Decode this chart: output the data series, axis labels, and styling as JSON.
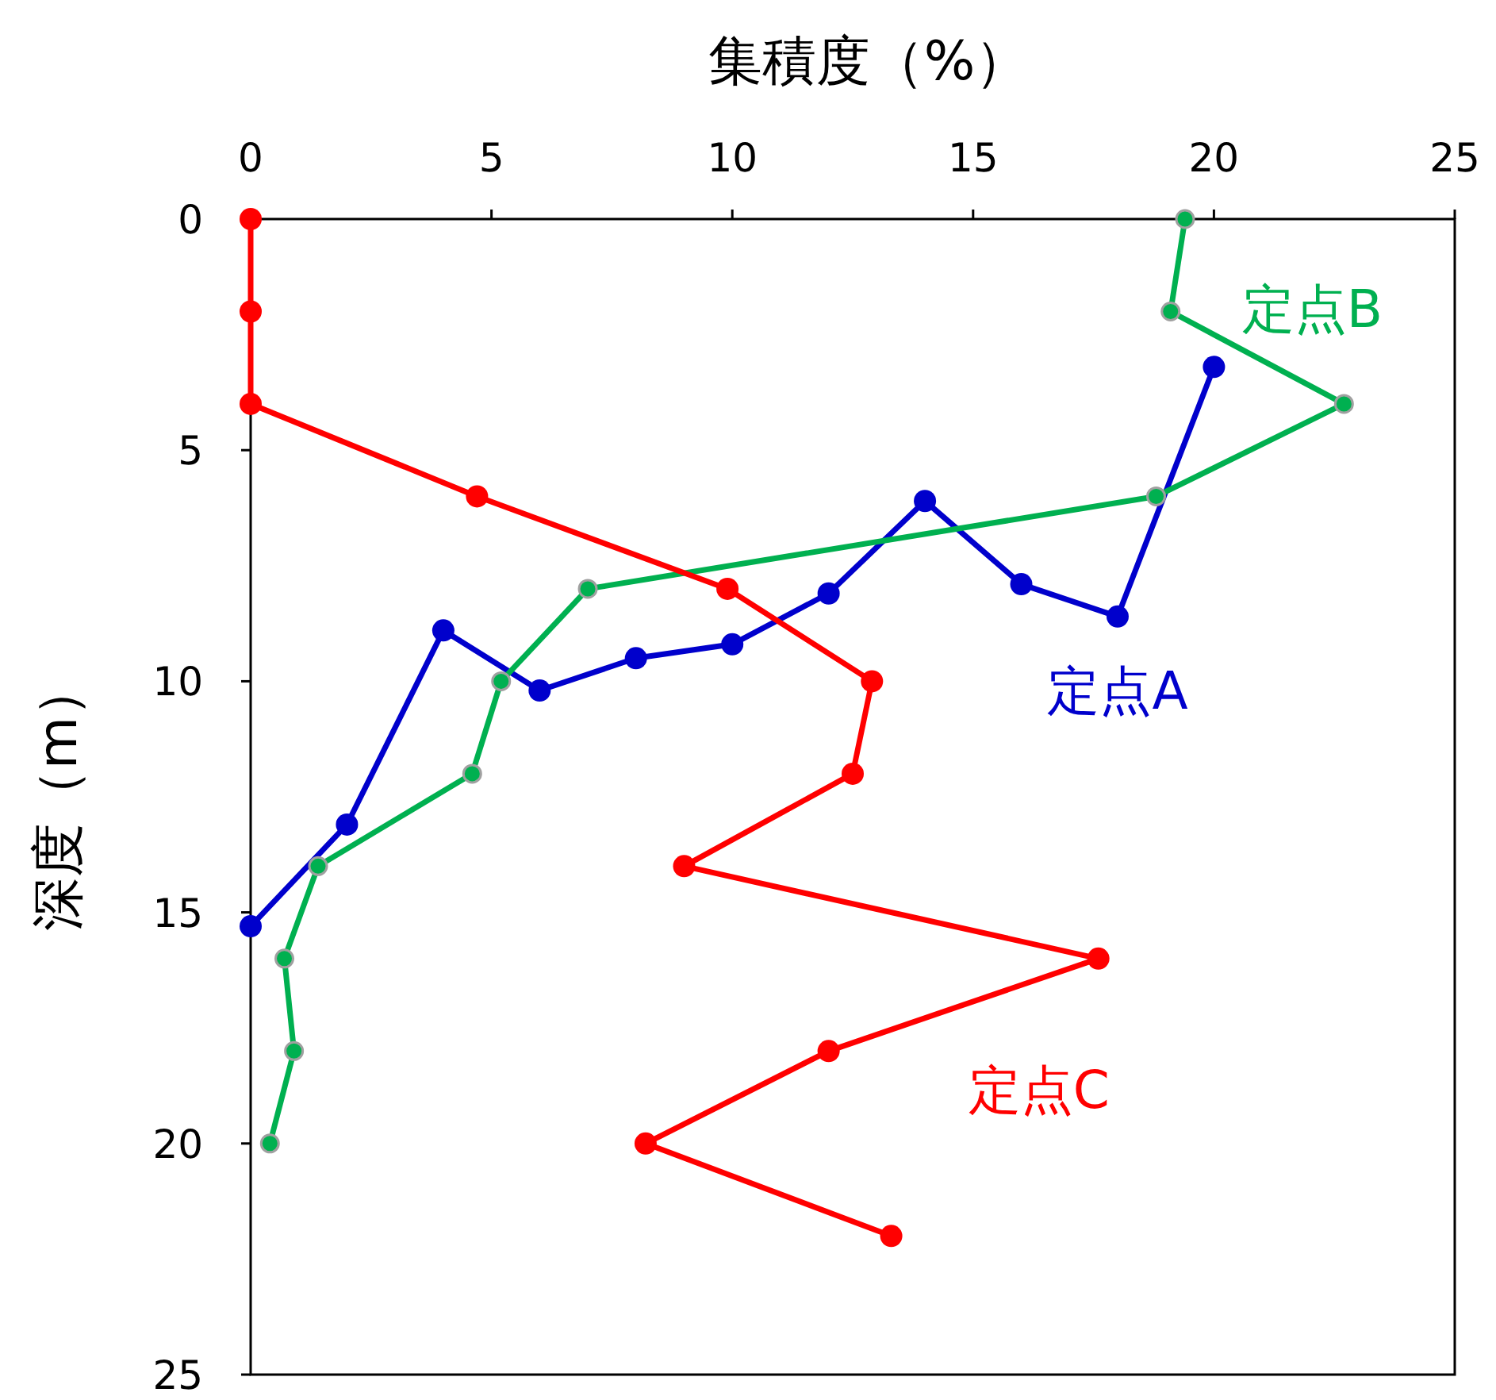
{
  "chart_data": {
    "type": "line",
    "xlabel": "集積度（%）",
    "ylabel": "深度（m）",
    "xlim": [
      0,
      25
    ],
    "xticks": [
      0,
      5,
      10,
      15,
      20,
      25
    ],
    "ylim": [
      25,
      0
    ],
    "yticks": [
      0,
      5,
      10,
      15,
      20,
      25
    ],
    "grid": false,
    "marker": "circle",
    "line_style": "solid",
    "series": [
      {
        "name": "定点A",
        "color": "#0000cc",
        "x": [
          20,
          18,
          16,
          14,
          12,
          10,
          8,
          6,
          4,
          2,
          0
        ],
        "values": [
          3.2,
          8.6,
          7.9,
          6.1,
          8.1,
          9.2,
          9.5,
          10.2,
          8.9,
          13.1,
          15.3
        ]
      },
      {
        "name": "定点B",
        "color": "#00b050",
        "x": [
          19.4,
          19.1,
          22.7,
          18.8,
          7,
          5.2,
          4.6,
          1.4,
          0.7,
          0.9,
          0.4
        ],
        "values": [
          0,
          2,
          4,
          6,
          8,
          10,
          12,
          14,
          16,
          18,
          20
        ]
      },
      {
        "name": "定点C",
        "color": "#ff0000",
        "x": [
          0,
          0,
          0,
          4.7,
          9.9,
          12.9,
          12.5,
          9,
          17.6,
          12,
          8.2,
          13.3
        ],
        "values": [
          0,
          2,
          4,
          6,
          8,
          10,
          12,
          14,
          16,
          18,
          20,
          22
        ]
      }
    ]
  }
}
